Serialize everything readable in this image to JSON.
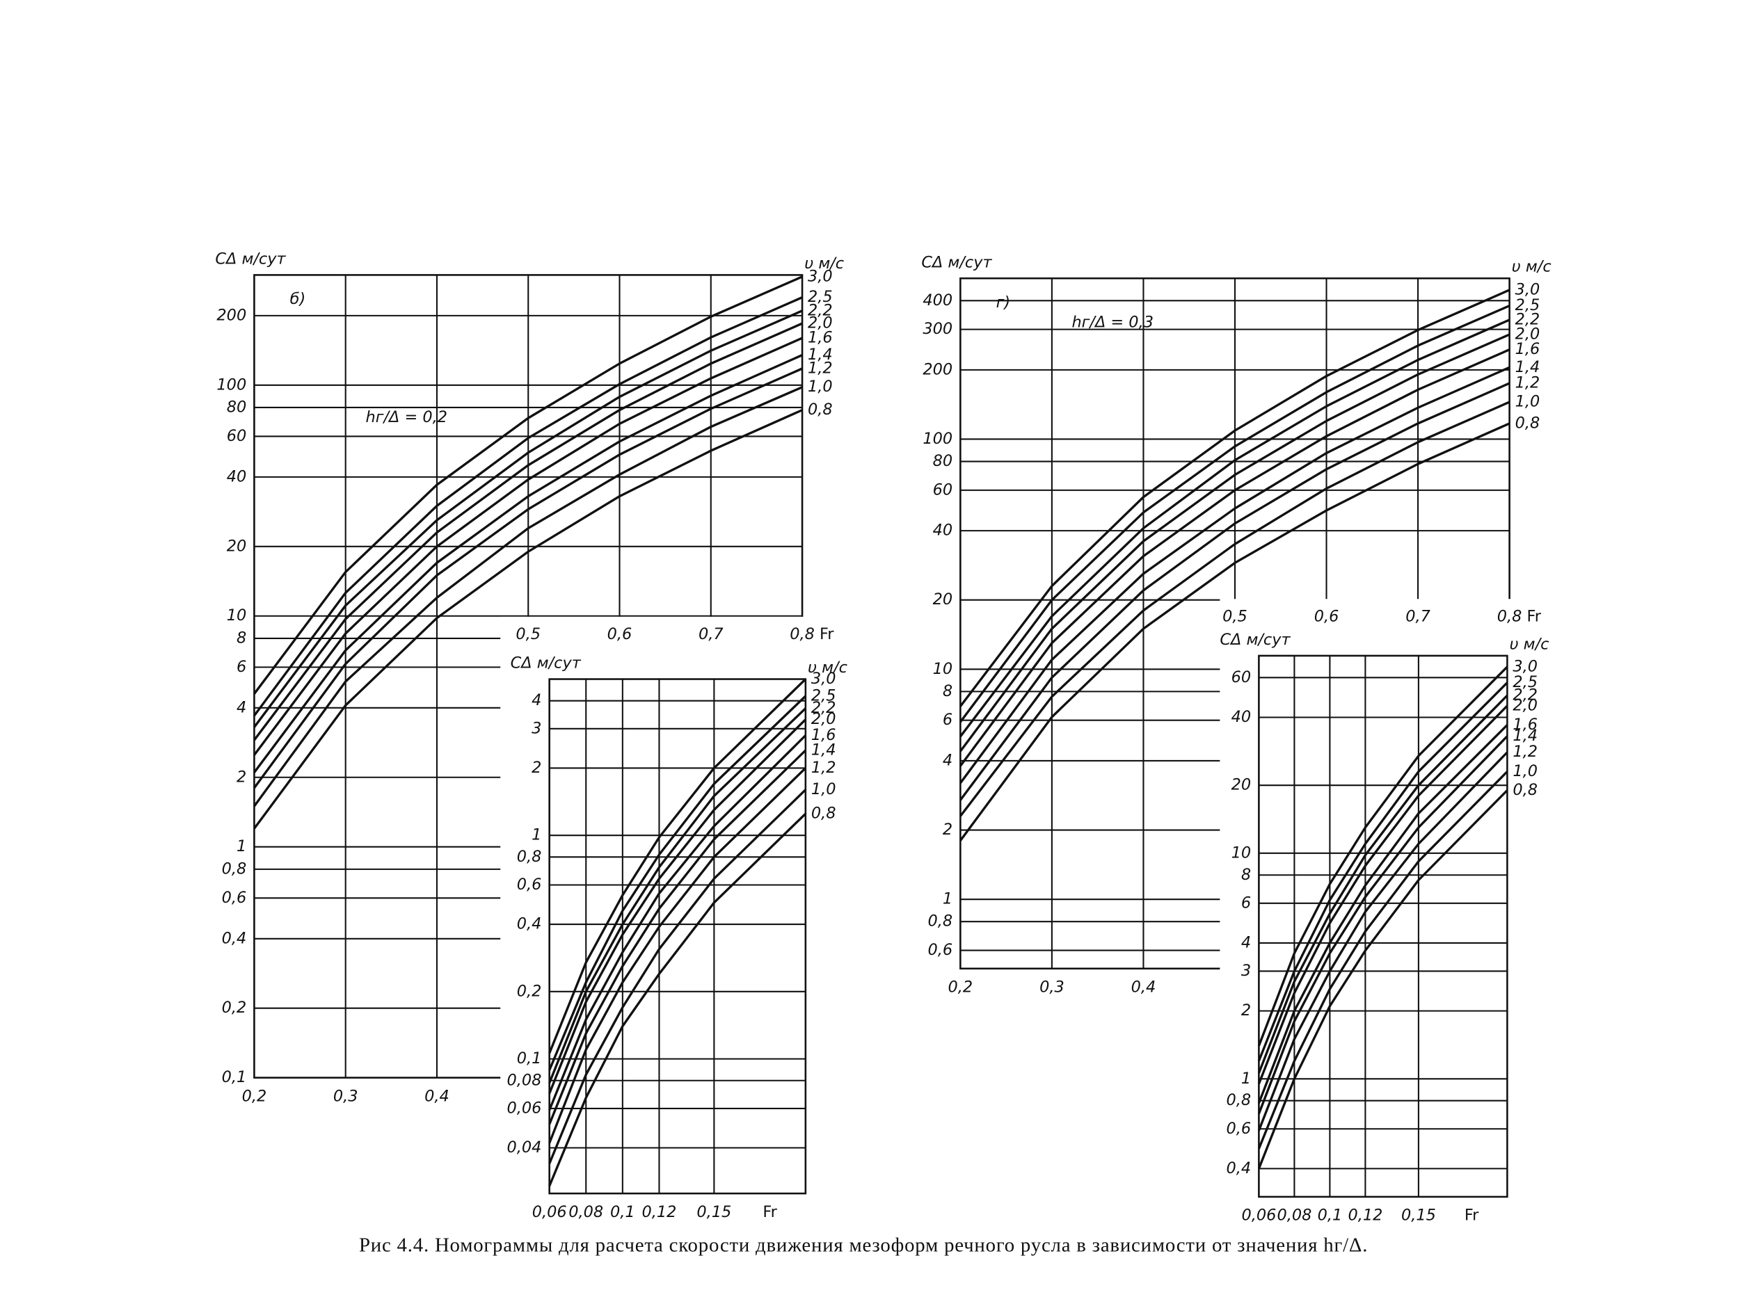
{
  "caption": "Рис 4.4. Номограммы для расчета скорости движения мезоформ речного русла в зависимости от значения hг/Δ.",
  "chart_data": [
    {
      "type": "line",
      "panel_label": "б)",
      "annotation": "hг/Δ = 0,2",
      "y_label": "CΔ м/сут",
      "legend_title": "υ м/с",
      "x_label": "Fr",
      "log_y": true,
      "grid": true,
      "xlim": [
        0.2,
        0.8
      ],
      "ylim": [
        0.1,
        300
      ],
      "xticks": [
        {
          "value": 0.2,
          "label": "0,2"
        },
        {
          "value": 0.3,
          "label": "0,3"
        },
        {
          "value": 0.4,
          "label": "0,4"
        },
        {
          "value": 0.5,
          "label": "0,5"
        },
        {
          "value": 0.6,
          "label": "0,6"
        },
        {
          "value": 0.7,
          "label": "0,7"
        },
        {
          "value": 0.8,
          "label": "0,8"
        }
      ],
      "yticks": [
        {
          "value": 0.1,
          "label": "0,1"
        },
        {
          "value": 0.2,
          "label": "0,2"
        },
        {
          "value": 0.4,
          "label": "0,4"
        },
        {
          "value": 0.6,
          "label": "0,6"
        },
        {
          "value": 0.8,
          "label": "0,8"
        },
        1,
        2,
        4,
        6,
        8,
        10,
        20,
        40,
        60,
        80,
        100,
        200
      ],
      "x": [
        0.2,
        0.3,
        0.4,
        0.5,
        0.6,
        0.7,
        0.8
      ],
      "series": [
        {
          "name": "3,0",
          "color": "#111111",
          "values": [
            4.6,
            15.5,
            37,
            72,
            124,
            198,
            295
          ]
        },
        {
          "name": "2,5",
          "color": "#111111",
          "values": [
            3.7,
            12.6,
            30,
            59,
            101,
            161,
            240
          ]
        },
        {
          "name": "2,2",
          "color": "#111111",
          "values": [
            3.3,
            11.1,
            26,
            51,
            89,
            141,
            210
          ]
        },
        {
          "name": "2,0",
          "color": "#111111",
          "values": [
            2.9,
            9.7,
            23,
            45,
            78,
            124,
            185
          ]
        },
        {
          "name": "1,6",
          "color": "#111111",
          "values": [
            2.5,
            8.4,
            20,
            39,
            68,
            107,
            160
          ]
        },
        {
          "name": "1,4",
          "color": "#111111",
          "values": [
            2.1,
            7.1,
            17,
            33,
            57,
            90,
            135
          ]
        },
        {
          "name": "1,2",
          "color": "#111111",
          "values": [
            1.8,
            6.2,
            15,
            29,
            50,
            79,
            118
          ]
        },
        {
          "name": "1,0",
          "color": "#111111",
          "values": [
            1.5,
            5.2,
            12,
            24,
            41,
            66,
            98
          ]
        },
        {
          "name": "0,8",
          "color": "#111111",
          "values": [
            1.2,
            4.1,
            9.8,
            19,
            33,
            52,
            78
          ]
        }
      ]
    },
    {
      "type": "line",
      "y_label": "CΔ м/сут",
      "legend_title": "υ м/с",
      "x_label": "Fr",
      "log_y": true,
      "grid": true,
      "xlim": [
        0.06,
        0.2
      ],
      "ylim": [
        0.025,
        5
      ],
      "xticks": [
        {
          "value": 0.06,
          "label": "0,06"
        },
        {
          "value": 0.08,
          "label": "0,08"
        },
        {
          "value": 0.1,
          "label": "0,1"
        },
        {
          "value": 0.12,
          "label": "0,12"
        },
        {
          "value": 0.15,
          "label": "0,15"
        }
      ],
      "yticks": [
        {
          "value": 0.04,
          "label": "0,04"
        },
        {
          "value": 0.06,
          "label": "0,06"
        },
        {
          "value": 0.08,
          "label": "0,08"
        },
        {
          "value": 0.1,
          "label": "0,1"
        },
        {
          "value": 0.2,
          "label": "0,2"
        },
        {
          "value": 0.4,
          "label": "0,4"
        },
        {
          "value": 0.6,
          "label": "0,6"
        },
        {
          "value": 0.8,
          "label": "0,8"
        },
        1,
        2,
        3,
        4
      ],
      "x": [
        0.06,
        0.08,
        0.1,
        0.12,
        0.15,
        0.2
      ],
      "series": [
        {
          "name": "3,0",
          "color": "#111111",
          "values": [
            0.106,
            0.27,
            0.54,
            0.98,
            2.0,
            5
          ]
        },
        {
          "name": "2,5",
          "color": "#111111",
          "values": [
            0.089,
            0.22,
            0.46,
            0.82,
            1.7,
            4.2
          ]
        },
        {
          "name": "2,2",
          "color": "#111111",
          "values": [
            0.078,
            0.2,
            0.4,
            0.72,
            1.5,
            3.7
          ]
        },
        {
          "name": "2,0",
          "color": "#111111",
          "values": [
            0.07,
            0.18,
            0.36,
            0.64,
            1.3,
            3.3
          ]
        },
        {
          "name": "1,6",
          "color": "#111111",
          "values": [
            0.059,
            0.15,
            0.3,
            0.55,
            1.1,
            2.8
          ]
        },
        {
          "name": "1,4",
          "color": "#111111",
          "values": [
            0.051,
            0.13,
            0.26,
            0.47,
            0.96,
            2.4
          ]
        },
        {
          "name": "1,2",
          "color": "#111111",
          "values": [
            0.042,
            0.11,
            0.22,
            0.39,
            0.8,
            2.0
          ]
        },
        {
          "name": "1,0",
          "color": "#111111",
          "values": [
            0.034,
            0.085,
            0.17,
            0.31,
            0.64,
            1.6
          ]
        },
        {
          "name": "0,8",
          "color": "#111111",
          "values": [
            0.027,
            0.067,
            0.14,
            0.24,
            0.5,
            1.25
          ]
        }
      ]
    },
    {
      "type": "line",
      "panel_label": "г)",
      "annotation": "hг/Δ = 0,3",
      "y_label": "CΔ м/сут",
      "legend_title": "υ м/с",
      "x_label": "Fr",
      "log_y": true,
      "grid": true,
      "xlim": [
        0.2,
        0.8
      ],
      "ylim": [
        0.5,
        500
      ],
      "xticks": [
        {
          "value": 0.2,
          "label": "0,2"
        },
        {
          "value": 0.3,
          "label": "0,3"
        },
        {
          "value": 0.4,
          "label": "0,4"
        },
        {
          "value": 0.5,
          "label": "0,5"
        },
        {
          "value": 0.6,
          "label": "0,6"
        },
        {
          "value": 0.7,
          "label": "0,7"
        },
        {
          "value": 0.8,
          "label": "0,8"
        }
      ],
      "yticks": [
        {
          "value": 0.6,
          "label": "0,6"
        },
        {
          "value": 0.8,
          "label": "0,8"
        },
        1,
        2,
        4,
        6,
        8,
        10,
        20,
        40,
        60,
        80,
        100,
        200,
        300,
        400
      ],
      "x": [
        0.2,
        0.3,
        0.4,
        0.5,
        0.6,
        0.7,
        0.8
      ],
      "series": [
        {
          "name": "3,0",
          "color": "#111111",
          "values": [
            6.9,
            23,
            56,
            109,
            188,
            298,
            445
          ]
        },
        {
          "name": "2,5",
          "color": "#111111",
          "values": [
            5.9,
            20,
            48,
            93,
            160,
            255,
            380
          ]
        },
        {
          "name": "2,2",
          "color": "#111111",
          "values": [
            5.1,
            17,
            41,
            81,
            139,
            221,
            330
          ]
        },
        {
          "name": "2,0",
          "color": "#111111",
          "values": [
            4.4,
            15,
            36,
            70,
            120,
            191,
            285
          ]
        },
        {
          "name": "1,6",
          "color": "#111111",
          "values": [
            3.8,
            13,
            31,
            60,
            103,
            164,
            245
          ]
        },
        {
          "name": "1,4",
          "color": "#111111",
          "values": [
            3.2,
            11,
            26,
            50,
            87,
            137,
            205
          ]
        },
        {
          "name": "1,2",
          "color": "#111111",
          "values": [
            2.7,
            9.2,
            22,
            43,
            74,
            117,
            175
          ]
        },
        {
          "name": "1,0",
          "color": "#111111",
          "values": [
            2.3,
            7.6,
            18,
            35,
            61,
            97,
            145
          ]
        },
        {
          "name": "0,8",
          "color": "#111111",
          "values": [
            1.8,
            6.2,
            15,
            29,
            49,
            78,
            117
          ]
        }
      ]
    },
    {
      "type": "line",
      "y_label": "CΔ м/сут",
      "legend_title": "υ м/с",
      "x_label": "Fr",
      "log_y": true,
      "grid": true,
      "xlim": [
        0.06,
        0.2
      ],
      "ylim": [
        0.3,
        75
      ],
      "xticks": [
        {
          "value": 0.06,
          "label": "0,06"
        },
        {
          "value": 0.08,
          "label": "0,08"
        },
        {
          "value": 0.1,
          "label": "0,1"
        },
        {
          "value": 0.12,
          "label": "0,12"
        },
        {
          "value": 0.15,
          "label": "0,15"
        }
      ],
      "yticks": [
        {
          "value": 0.4,
          "label": "0,4"
        },
        {
          "value": 0.6,
          "label": "0,6"
        },
        {
          "value": 0.8,
          "label": "0,8"
        },
        1,
        2,
        3,
        4,
        6,
        8,
        10,
        20,
        40,
        60
      ],
      "x": [
        0.06,
        0.08,
        0.1,
        0.12,
        0.15,
        0.2
      ],
      "series": [
        {
          "name": "3,0",
          "color": "#111111",
          "values": [
            1.4,
            3.6,
            7.3,
            13,
            27,
            67
          ]
        },
        {
          "name": "2,5",
          "color": "#111111",
          "values": [
            1.2,
            3.0,
            6.2,
            11,
            23,
            57
          ]
        },
        {
          "name": "2,2",
          "color": "#111111",
          "values": [
            1.06,
            2.7,
            5.4,
            9.8,
            20,
            50
          ]
        },
        {
          "name": "2,0",
          "color": "#111111",
          "values": [
            0.95,
            2.4,
            4.9,
            8.8,
            18,
            45
          ]
        },
        {
          "name": "1,6",
          "color": "#111111",
          "values": [
            0.78,
            2.0,
            4.0,
            7.2,
            15,
            37
          ]
        },
        {
          "name": "1,4",
          "color": "#111111",
          "values": [
            0.7,
            1.8,
            3.6,
            6.4,
            13,
            33
          ]
        },
        {
          "name": "1,2",
          "color": "#111111",
          "values": [
            0.59,
            1.5,
            3.0,
            5.5,
            11,
            28
          ]
        },
        {
          "name": "1,0",
          "color": "#111111",
          "values": [
            0.49,
            1.2,
            2.5,
            4.5,
            9.2,
            23
          ]
        },
        {
          "name": "0,8",
          "color": "#111111",
          "values": [
            0.4,
            1.0,
            2.1,
            3.7,
            7.6,
            19
          ]
        }
      ]
    }
  ]
}
